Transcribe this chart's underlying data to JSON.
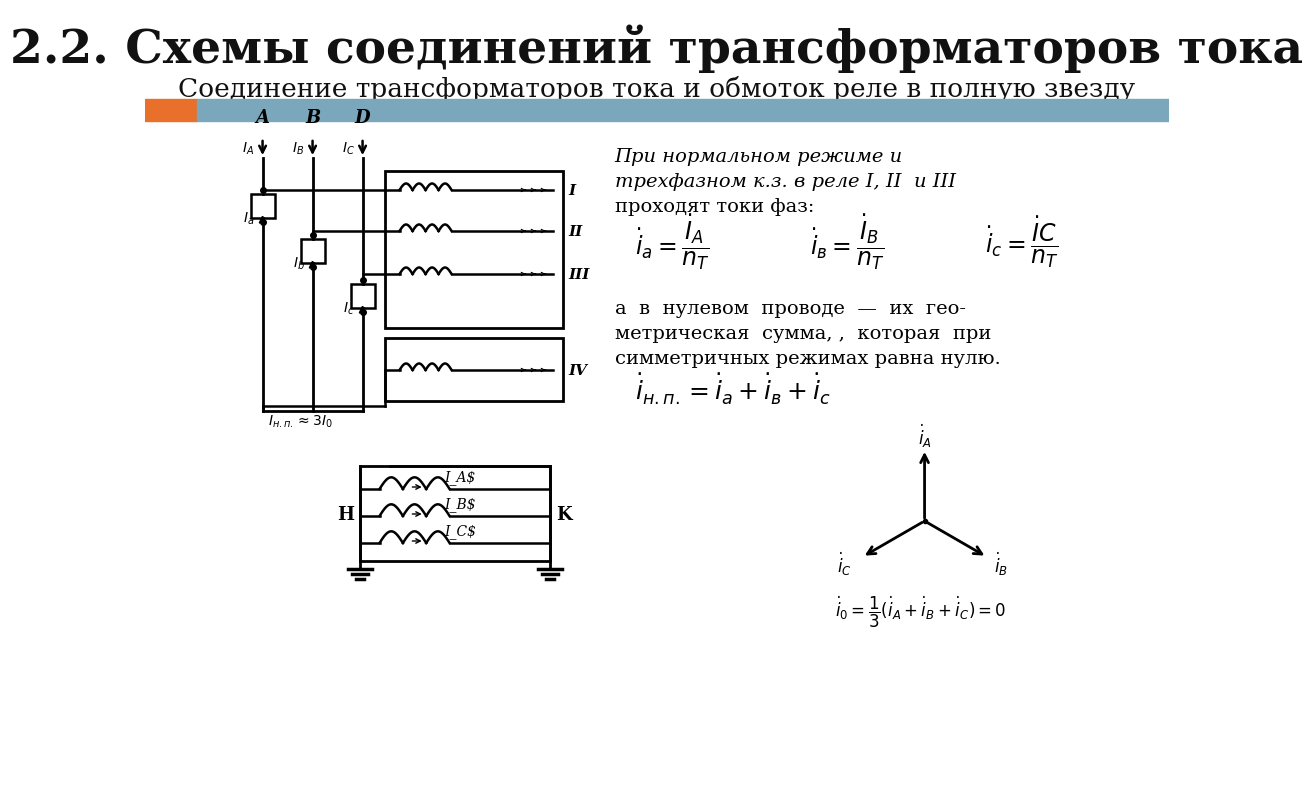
{
  "title": "2.2. Схемы соединений трансформаторов тока",
  "subtitle": "Соединение трансформаторов тока и обмоток реле в полную звезду",
  "title_fontsize": 34,
  "subtitle_fontsize": 19,
  "bg_color": "#ffffff",
  "header_bar_orange": "#E8702A",
  "header_bar_blue": "#7BA7BC",
  "text1_line1": "При нормальном режиме и",
  "text1_line2": "трехфазном к.з. в реле I, II  и III",
  "text1_line3": "проходят токи фаз:",
  "text2_line1": "а  в  нулевом  проводе  —  их  гео-",
  "text2_line2": "метрическая  сумма, ,  которая  при",
  "text2_line3": "симметричных режимах равна нулю."
}
